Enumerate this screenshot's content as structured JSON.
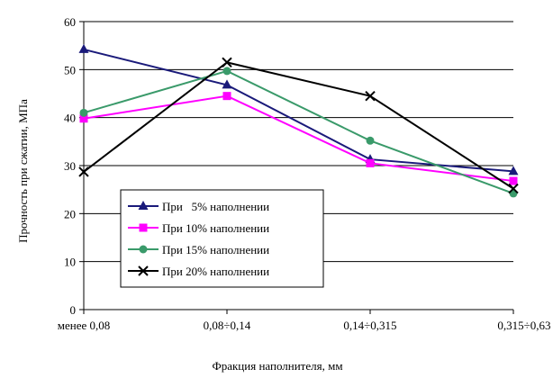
{
  "chart_data": {
    "type": "line",
    "title": "",
    "xlabel": "Фракция наполнителя, мм",
    "ylabel": "Прочность при сжатии, МПа",
    "categories": [
      "менее 0,08",
      "0,08÷0,14",
      "0,14÷0,315",
      "0,315÷0,63"
    ],
    "ylim": [
      0,
      60
    ],
    "yticks": [
      0,
      10,
      20,
      30,
      40,
      50,
      60
    ],
    "grid": "horizontal",
    "legend_position": "bottom-left",
    "series": [
      {
        "name": "При   5% наполнении",
        "values": [
          54.2,
          46.8,
          31.3,
          28.8
        ],
        "color": "#1a1a7a",
        "marker": "triangle"
      },
      {
        "name": "При 10% наполнении",
        "values": [
          39.8,
          44.5,
          30.5,
          26.8
        ],
        "color": "#ff00ff",
        "marker": "square"
      },
      {
        "name": "При 15% наполнении",
        "values": [
          41.0,
          49.7,
          35.2,
          24.2
        ],
        "color": "#3a9a6a",
        "marker": "circle"
      },
      {
        "name": "При 20% наполнении",
        "values": [
          28.7,
          51.5,
          44.5,
          25.2
        ],
        "color": "#000000",
        "marker": "cross"
      }
    ]
  }
}
